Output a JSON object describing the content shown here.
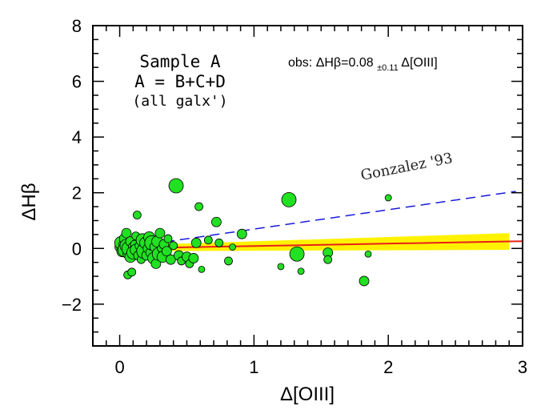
{
  "chart_data": {
    "type": "scatter",
    "title": "",
    "xlabel": "Δ[OIII]",
    "ylabel": "ΔHβ",
    "xlim": [
      -0.2,
      3.0
    ],
    "ylim": [
      -3.5,
      8.0
    ],
    "xticks": [
      0,
      1,
      2,
      3
    ],
    "yticks": [
      -2,
      0,
      2,
      4,
      6,
      8
    ],
    "ytick_labels": [
      "−2",
      "0",
      "2",
      "4",
      "6",
      "8"
    ],
    "grid": false,
    "annotation_sample": [
      "Sample A",
      "A = B+C+D",
      "(all galx')"
    ],
    "annotation_obs": {
      "prefix": "obs:  ΔHβ=0.08",
      "sub": "±0.11",
      "suffix": "Δ[OIII]"
    },
    "reference_line": {
      "label": "Gonzalez '93",
      "x": [
        0.0,
        2.95
      ],
      "y": [
        0.0,
        2.05
      ],
      "style": "dashed",
      "color": "#1a1adc"
    },
    "fit_line": {
      "x": [
        0.0,
        3.0
      ],
      "y": [
        0.0,
        0.26
      ],
      "color": "#e8201a"
    },
    "fit_band": {
      "color": "#fff200",
      "x": [
        0.0,
        2.9
      ],
      "upper": [
        0.1,
        0.55
      ],
      "lower": [
        -0.1,
        -0.05
      ]
    },
    "point_color": "#22e022",
    "points": [
      {
        "x": 0.0,
        "y": 0.05,
        "s": 6
      },
      {
        "x": 0.01,
        "y": 0.2,
        "s": 8
      },
      {
        "x": 0.02,
        "y": -0.1,
        "s": 7
      },
      {
        "x": 0.03,
        "y": 0.15,
        "s": 6
      },
      {
        "x": 0.04,
        "y": 0.35,
        "s": 7
      },
      {
        "x": 0.04,
        "y": -0.05,
        "s": 9
      },
      {
        "x": 0.05,
        "y": 0.55,
        "s": 6
      },
      {
        "x": 0.05,
        "y": 0.1,
        "s": 8
      },
      {
        "x": 0.06,
        "y": -0.2,
        "s": 6
      },
      {
        "x": 0.06,
        "y": -0.95,
        "s": 5
      },
      {
        "x": 0.07,
        "y": 0.0,
        "s": 9
      },
      {
        "x": 0.08,
        "y": 0.25,
        "s": 6
      },
      {
        "x": 0.08,
        "y": -0.3,
        "s": 7
      },
      {
        "x": 0.09,
        "y": -0.85,
        "s": 5
      },
      {
        "x": 0.1,
        "y": 0.05,
        "s": 6
      },
      {
        "x": 0.1,
        "y": -0.15,
        "s": 8
      },
      {
        "x": 0.11,
        "y": 0.15,
        "s": 5
      },
      {
        "x": 0.12,
        "y": -0.05,
        "s": 7
      },
      {
        "x": 0.12,
        "y": 0.45,
        "s": 5
      },
      {
        "x": 0.13,
        "y": 1.2,
        "s": 5
      },
      {
        "x": 0.14,
        "y": -0.25,
        "s": 6
      },
      {
        "x": 0.15,
        "y": 0.1,
        "s": 6
      },
      {
        "x": 0.16,
        "y": -0.4,
        "s": 5
      },
      {
        "x": 0.17,
        "y": 0.3,
        "s": 8
      },
      {
        "x": 0.18,
        "y": -0.1,
        "s": 9
      },
      {
        "x": 0.19,
        "y": 0.2,
        "s": 7
      },
      {
        "x": 0.2,
        "y": -0.25,
        "s": 6
      },
      {
        "x": 0.21,
        "y": 0.0,
        "s": 6
      },
      {
        "x": 0.22,
        "y": 0.4,
        "s": 7
      },
      {
        "x": 0.23,
        "y": -0.15,
        "s": 6
      },
      {
        "x": 0.24,
        "y": 0.2,
        "s": 9
      },
      {
        "x": 0.25,
        "y": -0.35,
        "s": 7
      },
      {
        "x": 0.26,
        "y": 0.05,
        "s": 6
      },
      {
        "x": 0.27,
        "y": -0.55,
        "s": 6
      },
      {
        "x": 0.28,
        "y": 0.25,
        "s": 7
      },
      {
        "x": 0.29,
        "y": -0.2,
        "s": 8
      },
      {
        "x": 0.3,
        "y": 0.55,
        "s": 6
      },
      {
        "x": 0.31,
        "y": 0.0,
        "s": 5
      },
      {
        "x": 0.32,
        "y": -0.3,
        "s": 7
      },
      {
        "x": 0.33,
        "y": 0.15,
        "s": 6
      },
      {
        "x": 0.35,
        "y": -0.1,
        "s": 6
      },
      {
        "x": 0.36,
        "y": 0.35,
        "s": 5
      },
      {
        "x": 0.38,
        "y": -0.4,
        "s": 6
      },
      {
        "x": 0.4,
        "y": 0.1,
        "s": 5
      },
      {
        "x": 0.42,
        "y": 2.25,
        "s": 9
      },
      {
        "x": 0.44,
        "y": -0.25,
        "s": 6
      },
      {
        "x": 0.46,
        "y": -0.45,
        "s": 5
      },
      {
        "x": 0.5,
        "y": -0.3,
        "s": 6
      },
      {
        "x": 0.52,
        "y": -0.55,
        "s": 5
      },
      {
        "x": 0.55,
        "y": -0.35,
        "s": 6
      },
      {
        "x": 0.57,
        "y": 0.2,
        "s": 6
      },
      {
        "x": 0.59,
        "y": 1.5,
        "s": 5
      },
      {
        "x": 0.61,
        "y": -0.75,
        "s": 4
      },
      {
        "x": 0.66,
        "y": 0.3,
        "s": 5
      },
      {
        "x": 0.72,
        "y": 0.95,
        "s": 6
      },
      {
        "x": 0.74,
        "y": 0.2,
        "s": 5
      },
      {
        "x": 0.81,
        "y": -0.45,
        "s": 5
      },
      {
        "x": 0.84,
        "y": 0.05,
        "s": 4
      },
      {
        "x": 0.91,
        "y": 0.52,
        "s": 6
      },
      {
        "x": 1.2,
        "y": -0.65,
        "s": 4
      },
      {
        "x": 1.26,
        "y": 1.75,
        "s": 9
      },
      {
        "x": 1.32,
        "y": -0.2,
        "s": 9
      },
      {
        "x": 1.35,
        "y": -0.82,
        "s": 4
      },
      {
        "x": 1.55,
        "y": -0.15,
        "s": 6
      },
      {
        "x": 1.55,
        "y": -0.4,
        "s": 5
      },
      {
        "x": 1.82,
        "y": -1.17,
        "s": 6
      },
      {
        "x": 1.85,
        "y": -0.2,
        "s": 4
      },
      {
        "x": 2.0,
        "y": 1.82,
        "s": 4
      }
    ]
  }
}
